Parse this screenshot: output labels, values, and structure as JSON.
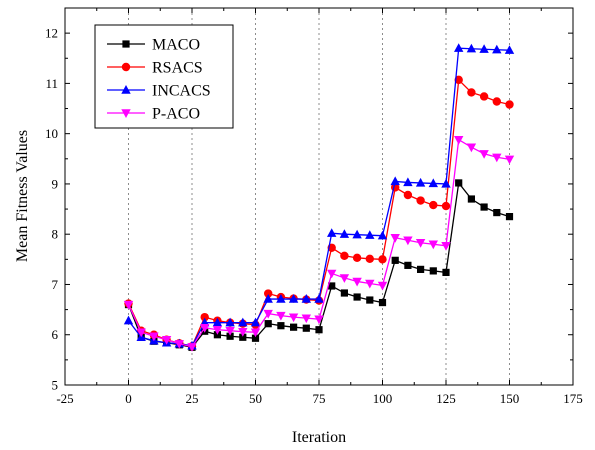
{
  "chart_data": {
    "type": "line",
    "title": "",
    "xlabel": "Iteration",
    "ylabel": "Mean Fitness Values",
    "xlim": [
      -25,
      175
    ],
    "ylim": [
      5,
      12.5
    ],
    "xticks": [
      -25,
      0,
      25,
      50,
      75,
      100,
      125,
      150,
      175
    ],
    "yticks": [
      5,
      6,
      7,
      8,
      9,
      10,
      11,
      12
    ],
    "vertical_dotted_gridlines_at": [
      0,
      25,
      50,
      75,
      100,
      125,
      150
    ],
    "legend_position": "top-left",
    "x": [
      0,
      5,
      10,
      15,
      20,
      25,
      30,
      35,
      40,
      45,
      50,
      55,
      60,
      65,
      70,
      75,
      80,
      85,
      90,
      95,
      100,
      105,
      110,
      115,
      120,
      125,
      130,
      135,
      140,
      145,
      150
    ],
    "series": [
      {
        "name": "MACO",
        "color": "#000000",
        "marker": "square",
        "values": [
          6.6,
          5.95,
          5.87,
          5.84,
          5.8,
          5.75,
          6.07,
          6.0,
          5.97,
          5.95,
          5.93,
          6.22,
          6.18,
          6.15,
          6.13,
          6.1,
          6.97,
          6.83,
          6.75,
          6.69,
          6.64,
          7.48,
          7.38,
          7.3,
          7.27,
          7.24,
          9.02,
          8.7,
          8.54,
          8.43,
          8.35
        ]
      },
      {
        "name": "RSACS",
        "color": "#ff0000",
        "marker": "circle",
        "values": [
          6.62,
          6.08,
          6.0,
          5.9,
          5.83,
          5.77,
          6.35,
          6.28,
          6.24,
          6.22,
          6.2,
          6.82,
          6.75,
          6.72,
          6.7,
          6.68,
          7.73,
          7.57,
          7.53,
          7.51,
          7.5,
          8.93,
          8.78,
          8.67,
          8.58,
          8.56,
          11.07,
          10.82,
          10.74,
          10.64,
          10.58
        ]
      },
      {
        "name": "INCACS",
        "color": "#0000ff",
        "marker": "triangle-up",
        "values": [
          6.28,
          5.95,
          5.88,
          5.84,
          5.82,
          5.78,
          6.24,
          6.24,
          6.24,
          6.24,
          6.24,
          6.71,
          6.71,
          6.71,
          6.71,
          6.71,
          8.02,
          8.0,
          7.99,
          7.98,
          7.97,
          9.05,
          9.03,
          9.02,
          9.01,
          9.0,
          11.7,
          11.69,
          11.68,
          11.67,
          11.66
        ]
      },
      {
        "name": "P-ACO",
        "color": "#ff00ff",
        "marker": "triangle-down",
        "values": [
          6.6,
          6.05,
          5.97,
          5.9,
          5.82,
          5.76,
          6.14,
          6.1,
          6.08,
          6.06,
          6.05,
          6.42,
          6.38,
          6.35,
          6.33,
          6.31,
          7.22,
          7.13,
          7.06,
          7.02,
          6.98,
          7.93,
          7.88,
          7.83,
          7.8,
          7.77,
          9.88,
          9.73,
          9.6,
          9.53,
          9.49
        ]
      }
    ]
  }
}
